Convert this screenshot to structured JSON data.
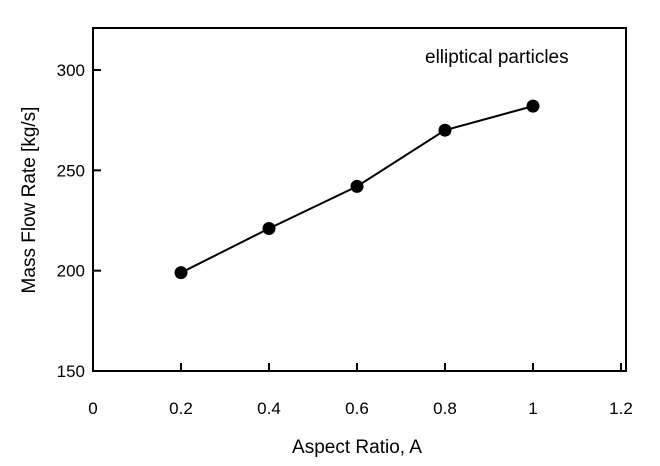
{
  "chart_data": {
    "type": "line",
    "xlabel": "Aspect Ratio, A",
    "ylabel": "Mass Flow Rate  [kg/s]",
    "annotation": "elliptical particles",
    "xlim": [
      0,
      1.2
    ],
    "ylim": [
      150,
      320
    ],
    "xticks": [
      "0",
      "0.2",
      "0.4",
      "0.6",
      "0.8",
      "1",
      "1.2"
    ],
    "yticks": [
      "150",
      "200",
      "250",
      "300"
    ],
    "grid": false,
    "series": [
      {
        "x": [
          0.2,
          0.4,
          0.6,
          0.8,
          1.0
        ],
        "y": [
          199,
          221,
          242,
          270,
          282
        ]
      }
    ]
  }
}
